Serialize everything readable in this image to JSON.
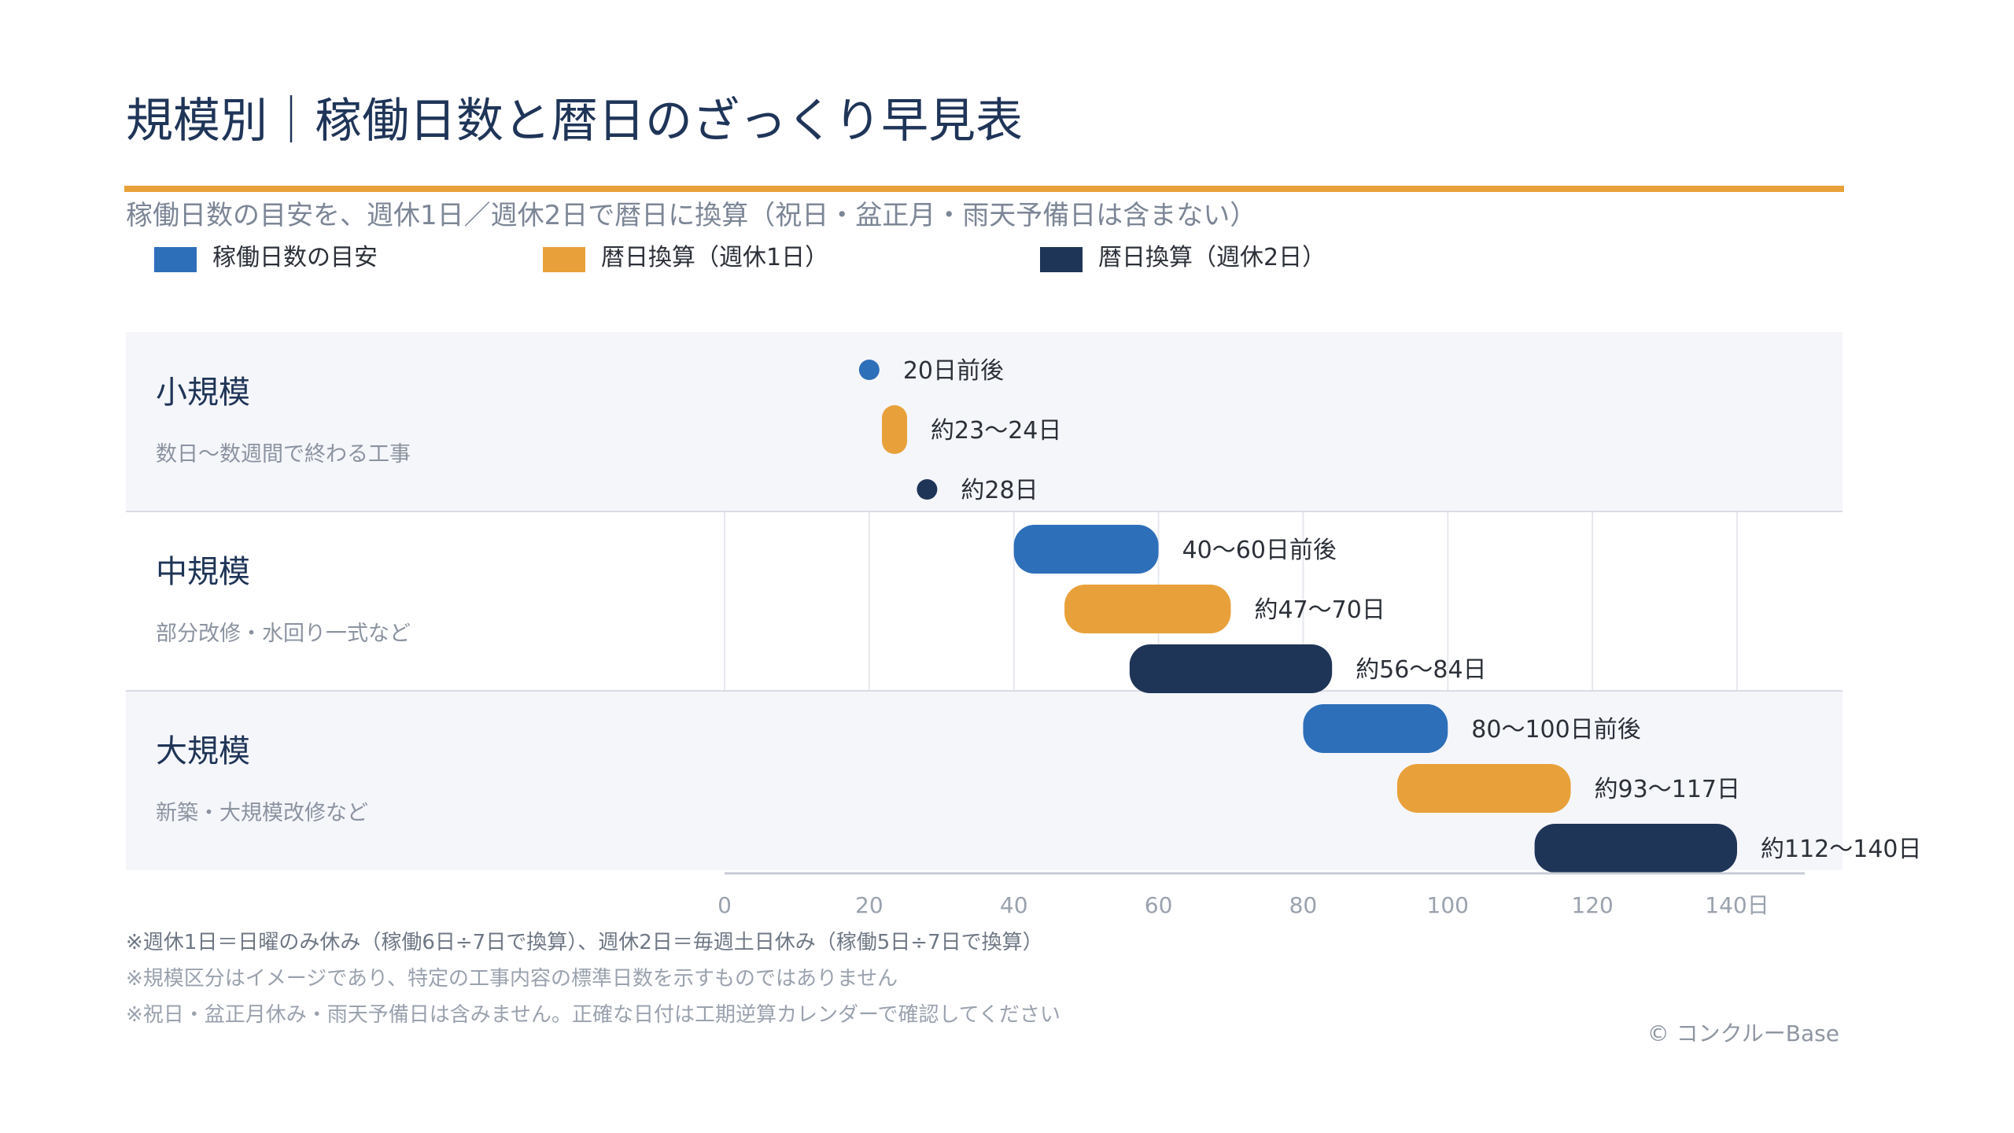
{
  "title": "規模別｜稼働日数と暦日のざっくり早見表",
  "subtitle": "稼働日数の目安を、週休1日／週休2日で暦日に換算（祝日・盆正月・雨天予備日は含まない）",
  "legend": [
    {
      "label": "稼働日数の目安",
      "color": "#2e6fba"
    },
    {
      "label": "暦日換算（週休1日）",
      "color": "#e8a13a"
    },
    {
      "label": "暦日換算（週休2日）",
      "color": "#1f3558"
    }
  ],
  "chart_data": {
    "type": "range-bar",
    "xlim": [
      0,
      140
    ],
    "x_ticks": [
      "0",
      "20",
      "40",
      "60",
      "80",
      "100",
      "120",
      "140日"
    ],
    "x_tick_values": [
      0,
      20,
      40,
      60,
      80,
      100,
      120,
      140
    ],
    "grid": true,
    "legend_position": "top-left",
    "series_colors": [
      "#2e6fba",
      "#e8a13a",
      "#1f3558"
    ],
    "categories": [
      {
        "name": "小規模",
        "description": "数日〜数週間で終わる工事",
        "bars": [
          {
            "series": 0,
            "start": 20,
            "end": 20,
            "label": "20日前後"
          },
          {
            "series": 1,
            "start": 23,
            "end": 24,
            "label": "約23〜24日"
          },
          {
            "series": 2,
            "start": 28,
            "end": 28,
            "label": "約28日"
          }
        ]
      },
      {
        "name": "中規模",
        "description": "部分改修・水回り一式など",
        "bars": [
          {
            "series": 0,
            "start": 40,
            "end": 60,
            "label": "40〜60日前後"
          },
          {
            "series": 1,
            "start": 47,
            "end": 70,
            "label": "約47〜70日"
          },
          {
            "series": 2,
            "start": 56,
            "end": 84,
            "label": "約56〜84日"
          }
        ]
      },
      {
        "name": "大規模",
        "description": "新築・大規模改修など",
        "bars": [
          {
            "series": 0,
            "start": 80,
            "end": 100,
            "label": "80〜100日前後"
          },
          {
            "series": 1,
            "start": 93,
            "end": 117,
            "label": "約93〜117日"
          },
          {
            "series": 2,
            "start": 112,
            "end": 140,
            "label": "約112〜140日"
          }
        ]
      }
    ]
  },
  "footnotes": [
    "※週休1日＝日曜のみ休み（稼働6日÷7日で換算）、週休2日＝毎週土日休み（稼働5日÷7日で換算）",
    "※規模区分はイメージであり、特定の工事内容の標準日数を示すものではありません",
    "※祝日・盆正月休み・雨天予備日は含みません。正確な日付は工期逆算カレンダーで確認してください"
  ],
  "copyright": "© コンクルーBase"
}
